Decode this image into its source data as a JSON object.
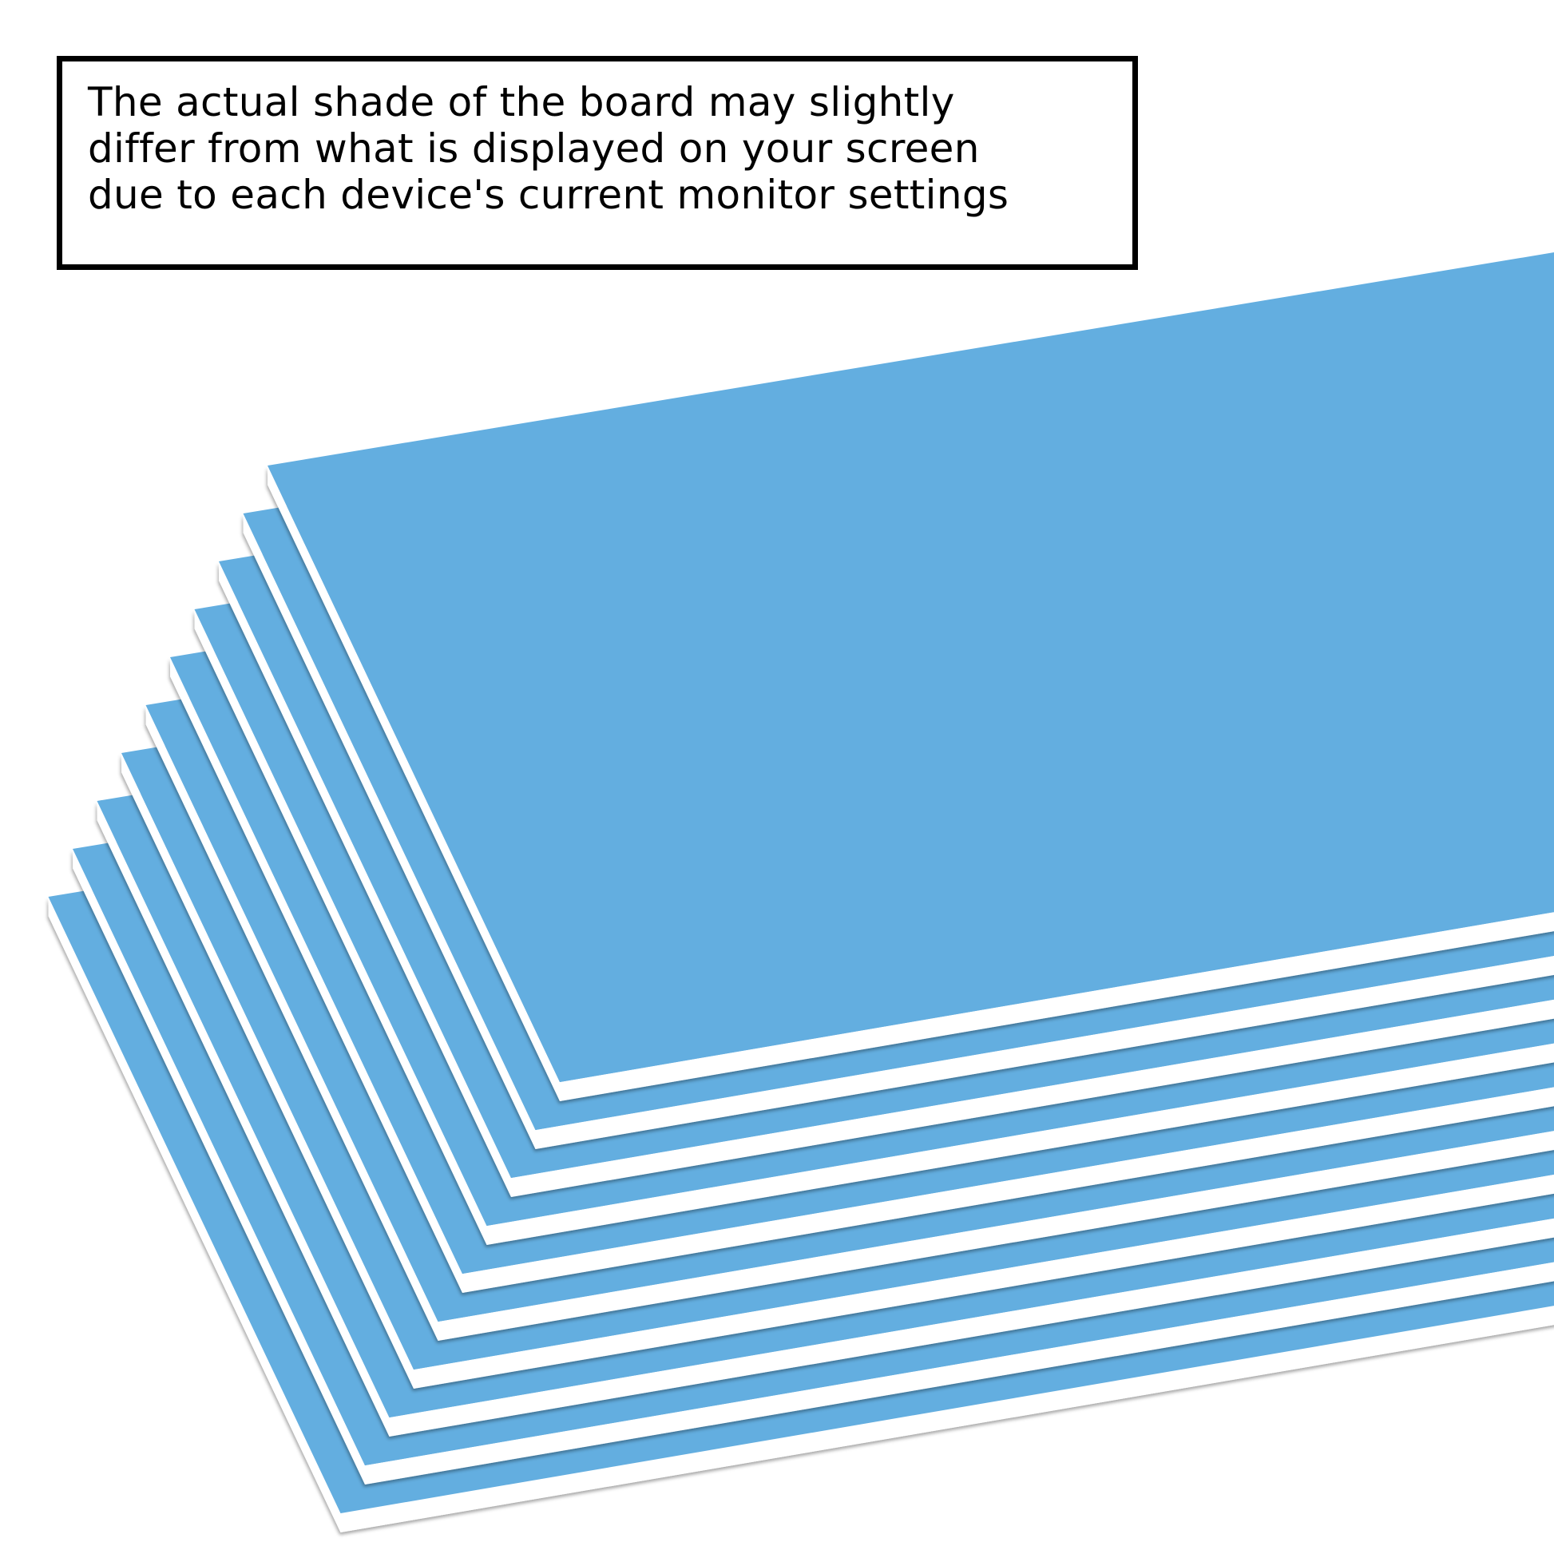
{
  "notice": {
    "lines": [
      "The actual shade of the board may slightly",
      "differ from what is displayed on your screen",
      "due to each device's current monitor settings"
    ]
  },
  "product": {
    "board_count": 10,
    "board_color": "#63aee0",
    "edge_color": "#ffffff"
  }
}
